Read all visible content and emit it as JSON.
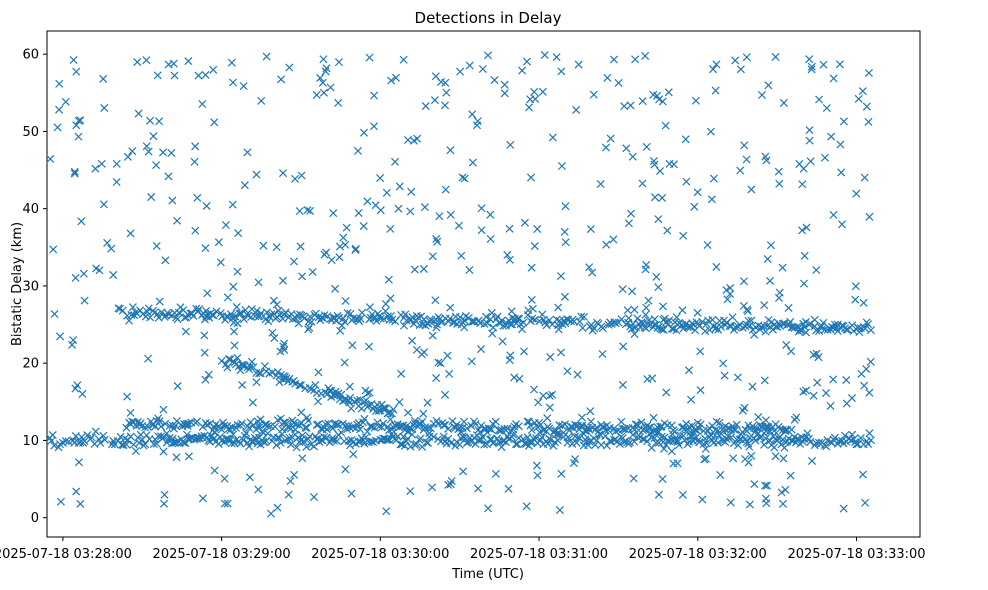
{
  "chart_data": {
    "type": "scatter",
    "title": "Detections in Delay",
    "xlabel": "Time (UTC)",
    "ylabel": "Bistatic Delay (km)",
    "marker": "x",
    "color": "#1f77b4",
    "xlim": [
      -0.1,
      5.4
    ],
    "ylim": [
      -2.5,
      63
    ],
    "xticks": [
      {
        "value": 0,
        "label": "2025-07-18 03:28:00"
      },
      {
        "value": 1,
        "label": "2025-07-18 03:29:00"
      },
      {
        "value": 2,
        "label": "2025-07-18 03:30:00"
      },
      {
        "value": 3,
        "label": "2025-07-18 03:31:00"
      },
      {
        "value": 4,
        "label": "2025-07-18 03:32:00"
      },
      {
        "value": 5,
        "label": "2025-07-18 03:33:00"
      }
    ],
    "yticks": [
      0,
      10,
      20,
      30,
      40,
      50,
      60
    ],
    "x_units": "minutes after 2025-07-18 03:28:00",
    "series": [
      {
        "name": "track-25km",
        "x_range": [
          0.35,
          5.1
        ],
        "y_start": 26.5,
        "y_end": 24.5,
        "description": "dense detections ~24-27 km"
      },
      {
        "name": "track-10km",
        "x_range": [
          -0.1,
          5.1
        ],
        "y_start": 10.0,
        "y_end": 10.0,
        "description": "dense detections ~9-10 km"
      },
      {
        "name": "track-12km",
        "x_range": [
          0.4,
          4.6
        ],
        "y_start": 12.0,
        "y_end": 11.5,
        "description": "dense detections ~11-13 km"
      },
      {
        "name": "track-descending",
        "x_range": [
          1.0,
          2.1
        ],
        "y_start": 20.5,
        "y_end": 13.5,
        "description": "descending track from ~20 to ~13 km"
      },
      {
        "name": "clutter",
        "x_range": [
          -0.1,
          5.1
        ],
        "y_range": [
          0.5,
          60
        ],
        "count": 620,
        "description": "scattered random detections"
      }
    ]
  }
}
